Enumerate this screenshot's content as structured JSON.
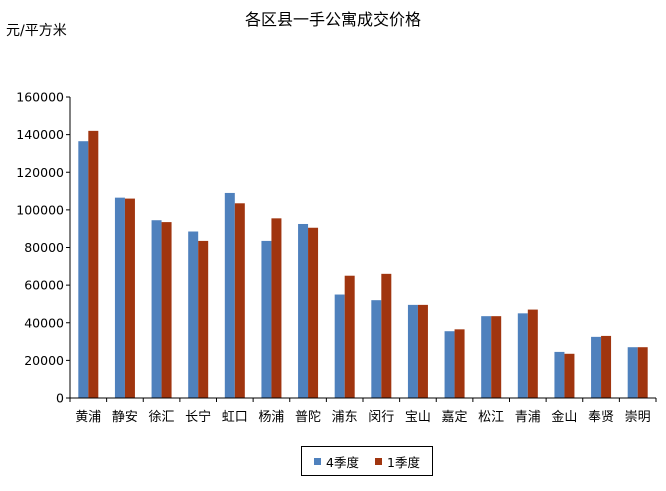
{
  "chart_data": {
    "type": "bar",
    "title": "各区县一手公寓成交价格",
    "ylabel": "元/平方米",
    "xlabel": "",
    "ylim": [
      0,
      160000
    ],
    "yticks": [
      "0",
      "20000",
      "40000",
      "60000",
      "80000",
      "100000",
      "120000",
      "140000",
      "160000"
    ],
    "categories": [
      "黄浦",
      "静安",
      "徐汇",
      "长宁",
      "虹口",
      "杨浦",
      "普陀",
      "浦东",
      "闵行",
      "宝山",
      "嘉定",
      "松江",
      "青浦",
      "金山",
      "奉贤",
      "崇明"
    ],
    "series": [
      {
        "name": "4季度",
        "color": "#4F81BD",
        "values": [
          136500,
          106500,
          94500,
          88500,
          109000,
          83500,
          92500,
          55000,
          52000,
          49500,
          35500,
          43500,
          45000,
          24500,
          32500,
          27000
        ]
      },
      {
        "name": "1季度",
        "color": "#A0350F",
        "values": [
          142000,
          106000,
          93500,
          83500,
          103500,
          95500,
          90500,
          65000,
          66000,
          49500,
          36500,
          43500,
          47000,
          23500,
          33000,
          27000
        ]
      }
    ],
    "grid": false,
    "legend_position": "bottom"
  }
}
